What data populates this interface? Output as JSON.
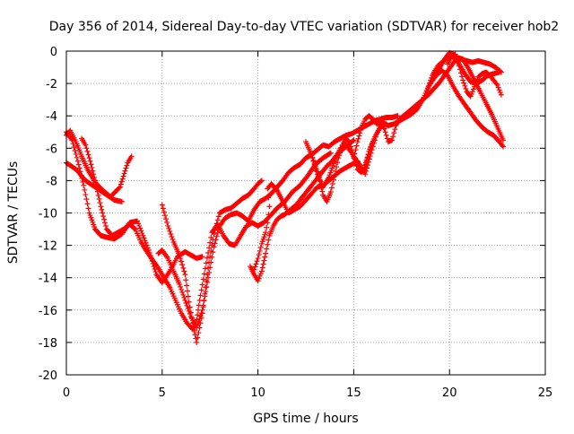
{
  "chart_data": {
    "type": "scatter",
    "title": "Day 356 of 2014, Sidereal Day-to-day VTEC variation (SDTVAR) for receiver hob2",
    "xlabel": "GPS time / hours",
    "ylabel": "SDTVAR / TECUs",
    "xlim": [
      0,
      25
    ],
    "ylim": [
      -20,
      0
    ],
    "xticks": [
      "0",
      "5",
      "10",
      "15",
      "20",
      "25"
    ],
    "yticks": [
      "0",
      "-2",
      "-4",
      "-6",
      "-8",
      "-10",
      "-12",
      "-14",
      "-16",
      "-18",
      "-20"
    ],
    "grid": true,
    "marker": "+",
    "color": "#ff0000",
    "series": [
      {
        "x": [
          0.0,
          0.2,
          0.5,
          0.8,
          1.1,
          1.5,
          1.9,
          2.3,
          2.8,
          3.2,
          3.4
        ],
        "y": [
          -5.2,
          -4.9,
          -5.6,
          -6.5,
          -7.3,
          -8.1,
          -8.6,
          -9.0,
          -8.4,
          -6.9,
          -6.5
        ]
      },
      {
        "x": [
          0.0,
          0.5,
          1.0,
          1.5,
          2.0,
          2.5,
          2.9
        ],
        "y": [
          -6.9,
          -7.3,
          -8.0,
          -8.4,
          -8.8,
          -9.2,
          -9.3
        ]
      },
      {
        "x": [
          0.0,
          0.3,
          0.6,
          0.9,
          1.2,
          1.5,
          1.8,
          2.1,
          2.5,
          2.9,
          3.3,
          3.7,
          4.0,
          4.3,
          4.7,
          5.0,
          5.4,
          5.8,
          6.2,
          6.5,
          6.8,
          7.1
        ],
        "y": [
          -5.0,
          -5.5,
          -6.8,
          -8.3,
          -10.0,
          -11.0,
          -11.4,
          -11.5,
          -11.6,
          -11.3,
          -10.6,
          -10.5,
          -11.4,
          -12.3,
          -13.8,
          -14.3,
          -13.6,
          -12.7,
          -12.4,
          -12.6,
          -12.8,
          -12.7
        ]
      },
      {
        "x": [
          0.8,
          1.0,
          1.2,
          1.5,
          1.8,
          2.1,
          2.4,
          2.7,
          3.0,
          3.3,
          3.6,
          3.9,
          4.2,
          4.5,
          4.8,
          5.1,
          5.4,
          5.7,
          6.0,
          6.3,
          6.6,
          6.8,
          7.0,
          7.3,
          7.6,
          7.9,
          8.2,
          8.5,
          8.8,
          9.1,
          9.4,
          9.7,
          10.0,
          10.3,
          10.7,
          11.0,
          11.4,
          11.8,
          12.2,
          12.6,
          13.0,
          13.4,
          13.8
        ],
        "y": [
          -5.4,
          -5.8,
          -6.6,
          -8.0,
          -9.6,
          -11.0,
          -11.4,
          -11.2,
          -11.0,
          -10.7,
          -11.0,
          -11.8,
          -12.4,
          -12.9,
          -13.4,
          -14.0,
          -14.6,
          -15.4,
          -16.2,
          -16.8,
          -17.2,
          -16.6,
          -15.1,
          -13.1,
          -11.2,
          -10.7,
          -11.4,
          -11.9,
          -12.0,
          -11.4,
          -10.8,
          -10.6,
          -10.8,
          -10.6,
          -10.1,
          -9.7,
          -9.3,
          -8.7,
          -8.3,
          -7.7,
          -7.0,
          -6.6,
          -6.3
        ]
      },
      {
        "x": [
          4.8,
          5.0,
          5.3,
          5.6,
          5.9,
          6.2,
          6.5,
          6.8,
          7.1,
          7.4,
          7.7,
          8.0,
          8.3,
          8.6,
          8.9,
          9.2,
          9.5,
          9.8,
          10.1,
          10.4,
          10.7,
          11.0,
          11.3,
          11.6,
          11.9,
          12.2,
          12.5,
          12.8,
          13.1,
          13.4,
          13.7,
          14.0,
          14.3,
          14.6,
          14.9,
          15.2,
          15.5,
          15.8,
          16.1,
          16.4,
          16.7,
          17.0,
          17.3
        ],
        "y": [
          -12.5,
          -12.3,
          -12.8,
          -13.6,
          -14.4,
          -15.4,
          -16.4,
          -17.1,
          -16.0,
          -14.0,
          -12.1,
          -10.8,
          -10.3,
          -10.1,
          -10.0,
          -10.2,
          -10.5,
          -9.8,
          -9.3,
          -9.1,
          -8.8,
          -8.4,
          -8.0,
          -7.5,
          -7.2,
          -7.0,
          -6.6,
          -6.4,
          -6.1,
          -5.8,
          -5.9,
          -5.6,
          -5.4,
          -5.2,
          -5.1,
          -4.9,
          -4.7,
          -4.5,
          -4.3,
          -4.2,
          -4.1,
          -4.1,
          -4.0
        ]
      },
      {
        "x": [
          5.0,
          5.3,
          5.6,
          5.9,
          6.2,
          6.4,
          6.6,
          6.8,
          7.1,
          7.4,
          7.7,
          8.0,
          8.3,
          8.6,
          8.9,
          9.2,
          9.5,
          9.8,
          10.0,
          10.2
        ],
        "y": [
          -9.5,
          -10.8,
          -11.8,
          -12.6,
          -13.8,
          -15.5,
          -16.8,
          -18.0,
          -16.2,
          -13.4,
          -11.3,
          -10.0,
          -9.8,
          -9.7,
          -9.4,
          -9.1,
          -8.9,
          -8.5,
          -8.2,
          -8.0
        ]
      },
      {
        "x": [
          9.8,
          10.0,
          10.2,
          10.4,
          10.5,
          10.6,
          10.5,
          10.7,
          11.0,
          11.3,
          11.6,
          11.9,
          12.2,
          12.5,
          12.8,
          13.1,
          13.4,
          13.7,
          14.0,
          14.3,
          14.6,
          14.9,
          15.2
        ],
        "y": [
          -13.5,
          -12.8,
          -11.9,
          -11.2,
          -10.6,
          -9.6,
          -8.5,
          -8.2,
          -8.6,
          -9.3,
          -10.0,
          -9.8,
          -9.6,
          -9.2,
          -8.8,
          -8.4,
          -8.3,
          -8.0,
          -7.7,
          -7.4,
          -7.2,
          -7.0,
          -6.8
        ]
      },
      {
        "x": [
          9.6,
          9.8,
          10.0,
          10.2,
          10.4,
          10.6,
          10.8,
          11.0,
          11.2,
          11.4,
          11.6,
          11.8,
          12.0,
          12.2,
          12.4,
          12.6,
          12.8,
          13.0,
          13.2,
          13.4,
          13.6,
          13.8,
          14.0,
          14.2,
          14.4,
          14.6,
          14.8,
          15.0
        ],
        "y": [
          -13.3,
          -13.8,
          -14.2,
          -13.6,
          -12.5,
          -11.4,
          -10.8,
          -10.4,
          -10.2,
          -10.1,
          -9.9,
          -9.7,
          -9.5,
          -9.2,
          -8.9,
          -8.6,
          -8.3,
          -8.0,
          -7.7,
          -7.4,
          -7.1,
          -6.9,
          -6.6,
          -6.3,
          -6.1,
          -5.9,
          -5.7,
          -5.5
        ]
      },
      {
        "x": [
          12.5,
          12.8,
          13.1,
          13.4,
          13.7,
          14.0,
          14.3,
          14.6,
          14.9,
          15.2,
          15.5,
          15.8,
          16.1,
          16.4,
          16.7
        ],
        "y": [
          -5.6,
          -6.4,
          -7.6,
          -8.4,
          -7.8,
          -6.8,
          -6.0,
          -5.8,
          -6.3,
          -6.9,
          -7.4,
          -6.2,
          -5.3,
          -4.7,
          -4.5
        ]
      },
      {
        "x": [
          12.8,
          13.0,
          13.2,
          13.4,
          13.6,
          13.8,
          14.0,
          14.2,
          14.4,
          14.6,
          14.8,
          15.0,
          15.2,
          15.4,
          15.6,
          15.8,
          16.0
        ],
        "y": [
          -6.4,
          -7.1,
          -7.8,
          -8.9,
          -9.3,
          -8.7,
          -7.7,
          -6.6,
          -5.8,
          -5.4,
          -5.7,
          -6.5,
          -7.3,
          -7.5,
          -7.2,
          -6.2,
          -5.6
        ]
      },
      {
        "x": [
          15.0,
          15.2,
          15.4,
          15.6,
          15.8,
          16.0,
          16.2,
          16.4,
          16.6,
          16.8,
          17.0,
          17.2,
          17.4,
          17.6,
          17.8,
          18.0,
          18.3,
          18.6,
          18.9,
          19.2,
          19.5,
          19.8,
          20.1,
          20.4,
          20.7,
          21.0,
          21.3,
          21.6,
          21.9,
          22.2,
          22.5,
          22.8
        ],
        "y": [
          -6.6,
          -5.6,
          -4.7,
          -4.2,
          -4.0,
          -4.2,
          -4.5,
          -4.4,
          -4.8,
          -5.6,
          -5.5,
          -4.6,
          -4.2,
          -4.0,
          -3.8,
          -3.6,
          -3.3,
          -3.0,
          -2.7,
          -2.3,
          -1.9,
          -1.4,
          -0.9,
          -0.4,
          -0.5,
          -1.1,
          -1.8,
          -2.5,
          -3.2,
          -3.9,
          -4.7,
          -5.5
        ]
      },
      {
        "x": [
          15.0,
          15.3,
          15.6,
          15.9,
          16.2,
          16.5,
          16.8,
          17.1,
          17.4,
          17.7,
          18.0,
          18.3,
          18.6,
          18.9,
          19.2,
          19.5,
          19.8,
          20.0,
          20.2,
          20.5,
          20.8,
          21.1,
          21.4,
          21.7,
          22.0,
          22.3,
          22.6
        ],
        "y": [
          -6.5,
          -7.0,
          -7.6,
          -6.3,
          -5.1,
          -4.4,
          -4.6,
          -4.5,
          -4.3,
          -4.1,
          -3.9,
          -3.6,
          -3.0,
          -2.2,
          -1.6,
          -1.0,
          -0.4,
          -0.1,
          -0.2,
          -0.8,
          -1.4,
          -1.9,
          -2.0,
          -1.8,
          -1.5,
          -1.4,
          -1.3
        ]
      },
      {
        "x": [
          18.8,
          19.1,
          19.4,
          19.7,
          20.0,
          20.3,
          20.6,
          20.9,
          21.2,
          21.5,
          21.8,
          22.1,
          22.4,
          22.7
        ],
        "y": [
          -2.6,
          -1.5,
          -0.9,
          -0.6,
          -0.3,
          -0.4,
          -0.5,
          -0.6,
          -0.7,
          -0.6,
          -0.7,
          -0.8,
          -1.0,
          -1.3
        ]
      },
      {
        "x": [
          19.0,
          19.3,
          19.6,
          19.9,
          20.2,
          20.5,
          20.8,
          21.1,
          21.4,
          21.7,
          22.0,
          22.3,
          22.6,
          22.8
        ],
        "y": [
          -2.0,
          -1.5,
          -1.2,
          -1.5,
          -2.2,
          -2.8,
          -3.3,
          -3.8,
          -4.3,
          -4.7,
          -5.0,
          -5.2,
          -5.6,
          -5.9
        ]
      },
      {
        "x": [
          19.9,
          20.1,
          20.3,
          20.5,
          20.7,
          20.9,
          21.1,
          21.3,
          21.5,
          21.7,
          21.9,
          22.1,
          22.3,
          22.5,
          22.7
        ],
        "y": [
          -0.8,
          -0.3,
          -0.2,
          -0.9,
          -1.8,
          -2.5,
          -2.8,
          -2.2,
          -1.6,
          -1.4,
          -1.3,
          -1.5,
          -1.8,
          -2.1,
          -2.7
        ]
      }
    ]
  }
}
